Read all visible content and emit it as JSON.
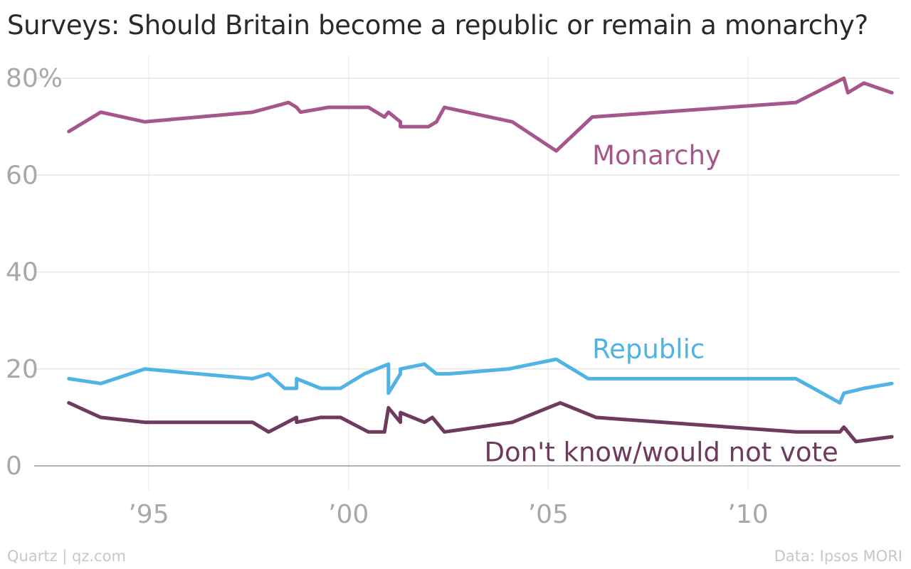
{
  "chart_data": {
    "type": "line",
    "title": "Surveys: Should Britain become a republic or remain a monarchy?",
    "y_tick_labels": [
      "80%",
      "60",
      "40",
      "20",
      "0"
    ],
    "y_ticks": [
      80,
      60,
      40,
      20,
      0
    ],
    "ylim": [
      0,
      80
    ],
    "x_tick_labels": [
      "’95",
      "’00",
      "’05",
      "’10"
    ],
    "x_ticks": [
      1995,
      2000,
      2005,
      2010
    ],
    "xlim": [
      1993,
      2013.6
    ],
    "grid": true,
    "series": [
      {
        "name": "Monarchy",
        "color": "#a5578c",
        "points": [
          [
            1993.0,
            69
          ],
          [
            1993.8,
            73
          ],
          [
            1994.9,
            71
          ],
          [
            1997.6,
            73
          ],
          [
            1998.5,
            75
          ],
          [
            1998.7,
            74
          ],
          [
            1998.8,
            73
          ],
          [
            1999.5,
            74
          ],
          [
            2000.5,
            74
          ],
          [
            2000.9,
            72
          ],
          [
            2001.0,
            73
          ],
          [
            2001.3,
            71
          ],
          [
            2001.3,
            70
          ],
          [
            2002.0,
            70
          ],
          [
            2002.2,
            71
          ],
          [
            2002.4,
            74
          ],
          [
            2004.1,
            71
          ],
          [
            2005.2,
            65
          ],
          [
            2006.1,
            72
          ],
          [
            2011.2,
            75
          ],
          [
            2012.4,
            80
          ],
          [
            2012.5,
            77
          ],
          [
            2012.9,
            79
          ],
          [
            2013.6,
            77
          ]
        ]
      },
      {
        "name": "Republic",
        "color": "#4fb3e3",
        "points": [
          [
            1993.0,
            18
          ],
          [
            1993.8,
            17
          ],
          [
            1994.9,
            20
          ],
          [
            1997.6,
            18
          ],
          [
            1998.0,
            19
          ],
          [
            1998.4,
            16
          ],
          [
            1998.7,
            16
          ],
          [
            1998.7,
            18
          ],
          [
            1999.3,
            16
          ],
          [
            1999.8,
            16
          ],
          [
            2000.4,
            19
          ],
          [
            2001.0,
            21
          ],
          [
            2001.0,
            15
          ],
          [
            2001.3,
            19
          ],
          [
            2001.3,
            20
          ],
          [
            2001.9,
            21
          ],
          [
            2002.2,
            19
          ],
          [
            2002.5,
            19
          ],
          [
            2004.0,
            20
          ],
          [
            2005.2,
            22
          ],
          [
            2006.0,
            18
          ],
          [
            2011.2,
            18
          ],
          [
            2012.3,
            13
          ],
          [
            2012.4,
            15
          ],
          [
            2012.9,
            16
          ],
          [
            2013.6,
            17
          ]
        ]
      },
      {
        "name": "Don't know/would not vote",
        "color": "#6e3a5e",
        "points": [
          [
            1993.0,
            13
          ],
          [
            1993.8,
            10
          ],
          [
            1994.9,
            9
          ],
          [
            1997.6,
            9
          ],
          [
            1998.0,
            7
          ],
          [
            1998.7,
            10
          ],
          [
            1998.7,
            9
          ],
          [
            1999.3,
            10
          ],
          [
            1999.8,
            10
          ],
          [
            2000.5,
            7
          ],
          [
            2000.9,
            7
          ],
          [
            2001.0,
            12
          ],
          [
            2001.3,
            9
          ],
          [
            2001.3,
            11
          ],
          [
            2001.9,
            9
          ],
          [
            2002.1,
            10
          ],
          [
            2002.4,
            7
          ],
          [
            2004.1,
            9
          ],
          [
            2005.3,
            13
          ],
          [
            2006.2,
            10
          ],
          [
            2011.2,
            7
          ],
          [
            2012.3,
            7
          ],
          [
            2012.4,
            8
          ],
          [
            2012.7,
            5
          ],
          [
            2013.6,
            6
          ]
        ]
      }
    ],
    "annotations": [
      {
        "series": "Monarchy",
        "text": "Monarchy",
        "x": 2006.1,
        "y": 64
      },
      {
        "series": "Republic",
        "text": "Republic",
        "x": 2006.1,
        "y": 24
      },
      {
        "series": "Don't know/would not vote",
        "text": "Don't know/would not vote",
        "x": 2003.4,
        "y": 2.7
      }
    ]
  },
  "footer": {
    "source_left": "Quartz | qz.com",
    "source_right": "Data: Ipsos MORI"
  }
}
